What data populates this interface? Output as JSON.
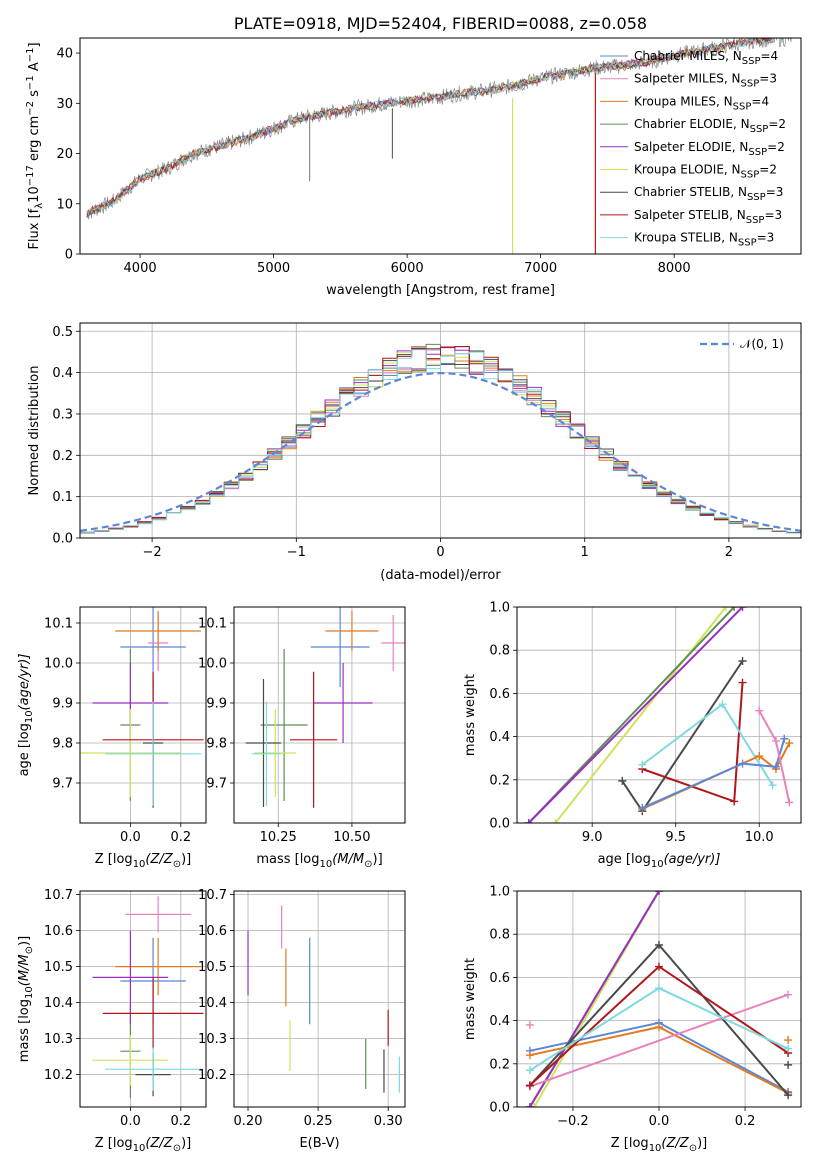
{
  "colors": {
    "Chabrier MILES": "#5b87d6",
    "Salpeter MILES": "#e882bf",
    "Kroupa MILES": "#e07b22",
    "Chabrier ELODIE": "#5e8f55",
    "Salpeter ELODIE": "#9a2fc2",
    "Kroupa ELODIE": "#cfe35a",
    "Chabrier STELIB": "#4a4a4a",
    "Salpeter STELIB": "#b01818",
    "Kroupa STELIB": "#7fd9e0"
  },
  "legend_models": [
    {
      "key": "Chabrier MILES",
      "label": "Chabrier MILES, N",
      "n": "=4"
    },
    {
      "key": "Salpeter MILES",
      "label": "Salpeter MILES, N",
      "n": "=3"
    },
    {
      "key": "Kroupa MILES",
      "label": "Kroupa MILES, N",
      "n": "=4"
    },
    {
      "key": "Chabrier ELODIE",
      "label": "Chabrier ELODIE, N",
      "n": "=2"
    },
    {
      "key": "Salpeter ELODIE",
      "label": "Salpeter ELODIE, N",
      "n": "=2"
    },
    {
      "key": "Kroupa ELODIE",
      "label": "Kroupa ELODIE, N",
      "n": "=2"
    },
    {
      "key": "Chabrier STELIB",
      "label": "Chabrier STELIB, N",
      "n": "=3"
    },
    {
      "key": "Salpeter STELIB",
      "label": "Salpeter STELIB, N",
      "n": "=3"
    },
    {
      "key": "Kroupa STELIB",
      "label": "Kroupa STELIB, N",
      "n": "=3"
    }
  ],
  "legend_sub": "SSP",
  "chart_data": [
    {
      "type": "line",
      "panel": "spectrum",
      "title": "PLATE=0918, MJD=52404, FIBERID=0088, z=0.058",
      "xlabel": "wavelength [Angstrom, rest frame]",
      "ylabel": "Flux [f",
      "ylabel_sub": "λ",
      "ylabel_rest": "10",
      "ylabel_exp": "−17",
      "ylabel_units": " erg cm",
      "ylabel_units_exp": "−2",
      "ylabel_units2": " s",
      "ylabel_units2_exp": "−1",
      "ylabel_units3": " A",
      "ylabel_units3_exp": "−1",
      "ylabel_end": "]",
      "xlim": [
        3550,
        8950
      ],
      "ylim": [
        0,
        43
      ],
      "xticks": [
        4000,
        5000,
        6000,
        7000,
        8000
      ],
      "yticks": [
        0,
        10,
        20,
        30,
        40
      ],
      "trend": [
        [
          3600,
          8
        ],
        [
          3800,
          10.5
        ],
        [
          4000,
          15
        ],
        [
          4200,
          17
        ],
        [
          4400,
          20
        ],
        [
          4600,
          21.5
        ],
        [
          4800,
          23
        ],
        [
          5000,
          25
        ],
        [
          5200,
          27
        ],
        [
          5400,
          28
        ],
        [
          5600,
          29
        ],
        [
          5800,
          29.8
        ],
        [
          6000,
          30.5
        ],
        [
          6200,
          31
        ],
        [
          6400,
          32
        ],
        [
          6600,
          32.5
        ],
        [
          6800,
          33.5
        ],
        [
          7000,
          35
        ],
        [
          7200,
          36
        ],
        [
          7400,
          37
        ],
        [
          7600,
          37.5
        ],
        [
          7800,
          38.2
        ],
        [
          8000,
          39.5
        ],
        [
          8200,
          40.5
        ],
        [
          8400,
          41.5
        ],
        [
          8600,
          42.5
        ],
        [
          8900,
          43
        ]
      ]
    },
    {
      "type": "line",
      "panel": "residuals",
      "xlabel": "(data-model)/error",
      "ylabel": "Normed distribution",
      "xlim": [
        -2.5,
        2.5
      ],
      "ylim": [
        0,
        0.52
      ],
      "xticks": [
        -2,
        -1,
        0,
        1,
        2
      ],
      "xticklabels": [
        "−2",
        "−1",
        "0",
        "1",
        "2"
      ],
      "yticks": [
        0.0,
        0.1,
        0.2,
        0.3,
        0.4,
        0.5
      ],
      "yticklabels": [
        "0.0",
        "0.1",
        "0.2",
        "0.3",
        "0.4",
        "0.5"
      ],
      "legend": "𝒩(0, 1)",
      "gaussian": {
        "mu": 0,
        "sigma": 1
      }
    },
    {
      "type": "scatter",
      "panel": "age-vs-Z",
      "xlabel": "Z [log",
      "xlabel_sub": "10",
      "xlabel_rest": "(Z/Z",
      "xlabel_sun": "⊙",
      "xlabel_end": ")]",
      "ylabel": "age  [log",
      "ylabel_sub": "10",
      "ylabel_rest": "(age/yr)]",
      "xlim": [
        -0.2,
        0.3
      ],
      "ylim": [
        9.6,
        10.14
      ],
      "xticks": [
        0.0,
        0.2
      ],
      "xticklabels": [
        "0.0",
        "0.2"
      ],
      "yticks": [
        9.7,
        9.8,
        9.9,
        10.0,
        10.1
      ],
      "yticklabels": [
        "9.7",
        "9.8",
        "9.9",
        "10.0",
        "10.1"
      ],
      "points": [
        {
          "model": "Chabrier MILES",
          "x": 0.09,
          "xerr": 0.13,
          "y": 10.04,
          "yerr": 0.1
        },
        {
          "model": "Salpeter MILES",
          "x": 0.11,
          "xerr": 0.04,
          "y": 10.05,
          "yerr": 0.07
        },
        {
          "model": "Kroupa MILES",
          "x": 0.11,
          "xerr": 0.17,
          "y": 10.08,
          "yerr": 0.05
        },
        {
          "model": "Chabrier ELODIE",
          "x": 0.0,
          "xerr": 0.04,
          "y": 9.845,
          "yerr": 0.19
        },
        {
          "model": "Salpeter ELODIE",
          "x": 0.0,
          "xerr": 0.15,
          "y": 9.9,
          "yerr": 0.1
        },
        {
          "model": "Kroupa ELODIE",
          "x": 0.0,
          "xerr": 0.2,
          "y": 9.775,
          "yerr": 0.11
        },
        {
          "model": "Chabrier STELIB",
          "x": 0.09,
          "xerr": 0.04,
          "y": 9.8,
          "yerr": 0.16
        },
        {
          "model": "Salpeter STELIB",
          "x": 0.09,
          "xerr": 0.2,
          "y": 9.808,
          "yerr": 0.17
        },
        {
          "model": "Kroupa STELIB",
          "x": 0.09,
          "xerr": 0.19,
          "y": 9.773,
          "yerr": 0.13
        }
      ]
    },
    {
      "type": "scatter",
      "panel": "age-vs-mass",
      "xlabel": "mass [log",
      "xlabel_sub": "10",
      "xlabel_rest": "(M/M",
      "xlabel_sun": "⊙",
      "xlabel_end": ")]",
      "xlim": [
        10.1,
        10.68
      ],
      "ylim": [
        9.6,
        10.14
      ],
      "xticks": [
        10.25,
        10.5
      ],
      "xticklabels": [
        "10.25",
        "10.50"
      ],
      "yticks": [
        9.7,
        9.8,
        9.9,
        10.0,
        10.1
      ],
      "yticklabels": [
        "9.7",
        "9.8",
        "9.9",
        "10.0",
        "10.1"
      ],
      "points": [
        {
          "model": "Chabrier MILES",
          "x": 10.46,
          "xerr": 0.1,
          "y": 10.04,
          "yerr": 0.1
        },
        {
          "model": "Salpeter MILES",
          "x": 10.64,
          "xerr": 0.04,
          "y": 10.05,
          "yerr": 0.07
        },
        {
          "model": "Kroupa MILES",
          "x": 10.5,
          "xerr": 0.09,
          "y": 10.08,
          "yerr": 0.05
        },
        {
          "model": "Chabrier ELODIE",
          "x": 10.27,
          "xerr": 0.08,
          "y": 9.845,
          "yerr": 0.19
        },
        {
          "model": "Salpeter ELODIE",
          "x": 10.47,
          "xerr": 0.1,
          "y": 9.9,
          "yerr": 0.1
        },
        {
          "model": "Kroupa ELODIE",
          "x": 10.24,
          "xerr": 0.07,
          "y": 9.775,
          "yerr": 0.11
        },
        {
          "model": "Chabrier STELIB",
          "x": 10.2,
          "xerr": 0.06,
          "y": 9.8,
          "yerr": 0.16
        },
        {
          "model": "Salpeter STELIB",
          "x": 10.37,
          "xerr": 0.08,
          "y": 9.808,
          "yerr": 0.17
        },
        {
          "model": "Kroupa STELIB",
          "x": 10.21,
          "xerr": 0.05,
          "y": 9.773,
          "yerr": 0.13
        }
      ]
    },
    {
      "type": "line",
      "panel": "weight-vs-age",
      "xlabel": "age  [log",
      "xlabel_sub": "10",
      "xlabel_rest": "(age/yr)]",
      "ylabel": "mass weight",
      "xlim": [
        8.55,
        10.25
      ],
      "ylim": [
        0,
        1
      ],
      "xticks": [
        9.0,
        9.5,
        10.0
      ],
      "xticklabels": [
        "9.0",
        "9.5",
        "10.0"
      ],
      "yticks": [
        0.0,
        0.2,
        0.4,
        0.6,
        0.8,
        1.0
      ],
      "yticklabels": [
        "0.0",
        "0.2",
        "0.4",
        "0.6",
        "0.8",
        "1.0"
      ],
      "series": [
        {
          "model": "Kroupa ELODIE",
          "points": [
            [
              8.78,
              0
            ],
            [
              9.8,
              1
            ]
          ]
        },
        {
          "model": "Chabrier ELODIE",
          "points": [
            [
              8.62,
              0
            ],
            [
              9.85,
              1
            ]
          ]
        },
        {
          "model": "Salpeter ELODIE",
          "points": [
            [
              8.62,
              0
            ],
            [
              9.9,
              1
            ]
          ]
        },
        {
          "model": "Chabrier STELIB",
          "points": [
            [
              9.18,
              0.195
            ],
            [
              9.3,
              0.055
            ],
            [
              9.9,
              0.75
            ]
          ]
        },
        {
          "model": "Salpeter STELIB",
          "points": [
            [
              9.3,
              0.25
            ],
            [
              9.85,
              0.1
            ],
            [
              9.9,
              0.65
            ]
          ]
        },
        {
          "model": "Kroupa STELIB",
          "points": [
            [
              9.3,
              0.27
            ],
            [
              9.78,
              0.55
            ],
            [
              10.08,
              0.175
            ]
          ]
        },
        {
          "model": "Kroupa MILES",
          "points": [
            [
              9.3,
              0.065
            ],
            [
              10.0,
              0.31
            ],
            [
              10.1,
              0.25
            ],
            [
              10.18,
              0.37
            ]
          ]
        },
        {
          "model": "Chabrier MILES",
          "points": [
            [
              9.3,
              0.07
            ],
            [
              9.9,
              0.275
            ],
            [
              10.1,
              0.26
            ],
            [
              10.15,
              0.39
            ]
          ]
        },
        {
          "model": "Salpeter MILES",
          "points": [
            [
              10.0,
              0.52
            ],
            [
              10.1,
              0.38
            ],
            [
              10.18,
              0.095
            ]
          ]
        }
      ]
    },
    {
      "type": "scatter",
      "panel": "mass-vs-Z",
      "xlabel": "Z [log",
      "xlabel_sub": "10",
      "xlabel_rest": "(Z/Z",
      "xlabel_sun": "⊙",
      "xlabel_end": ")]",
      "ylabel": "mass [log",
      "ylabel_sub": "10",
      "ylabel_rest": "(M/M",
      "ylabel_sun": "⊙",
      "ylabel_end": ")]",
      "xlim": [
        -0.2,
        0.3
      ],
      "ylim": [
        10.11,
        10.71
      ],
      "xticks": [
        0.0,
        0.2
      ],
      "xticklabels": [
        "0.0",
        "0.2"
      ],
      "yticks": [
        10.2,
        10.3,
        10.4,
        10.5,
        10.6,
        10.7
      ],
      "yticklabels": [
        "10.2",
        "10.3",
        "10.4",
        "10.5",
        "10.6",
        "10.7"
      ],
      "points": [
        {
          "model": "Chabrier MILES",
          "x": 0.09,
          "xerr": 0.13,
          "y": 10.46,
          "yerr": 0.12
        },
        {
          "model": "Salpeter MILES",
          "x": 0.11,
          "xerr": 0.13,
          "y": 10.645,
          "yerr": 0.05
        },
        {
          "model": "Kroupa MILES",
          "x": 0.11,
          "xerr": 0.17,
          "y": 10.5,
          "yerr": 0.08
        },
        {
          "model": "Chabrier ELODIE",
          "x": 0.0,
          "xerr": 0.04,
          "y": 10.265,
          "yerr": 0.13
        },
        {
          "model": "Salpeter ELODIE",
          "x": 0.0,
          "xerr": 0.15,
          "y": 10.47,
          "yerr": 0.13
        },
        {
          "model": "Kroupa ELODIE",
          "x": 0.0,
          "xerr": 0.15,
          "y": 10.24,
          "yerr": 0.07
        },
        {
          "model": "Chabrier STELIB",
          "x": 0.09,
          "xerr": 0.07,
          "y": 10.2,
          "yerr": 0.06
        },
        {
          "model": "Salpeter STELIB",
          "x": 0.09,
          "xerr": 0.2,
          "y": 10.37,
          "yerr": 0.1
        },
        {
          "model": "Kroupa STELIB",
          "x": 0.09,
          "xerr": 0.19,
          "y": 10.215,
          "yerr": 0.06
        }
      ]
    },
    {
      "type": "scatter",
      "panel": "mass-vs-EBV",
      "xlabel": "E(B-V)",
      "xlim": [
        0.19,
        0.312
      ],
      "ylim": [
        10.11,
        10.71
      ],
      "xticks": [
        0.2,
        0.25,
        0.3
      ],
      "xticklabels": [
        "0.20",
        "0.25",
        "0.30"
      ],
      "yticks": [
        10.2,
        10.3,
        10.4,
        10.5,
        10.6,
        10.7
      ],
      "yticklabels": [
        "10.2",
        "10.3",
        "10.4",
        "10.5",
        "10.6",
        "10.7"
      ],
      "points": [
        {
          "model": "Chabrier MILES",
          "x": 0.244,
          "yerr": 0.12,
          "y": 10.46
        },
        {
          "model": "Salpeter MILES",
          "x": 0.224,
          "yerr": 0.06,
          "y": 10.61
        },
        {
          "model": "Kroupa MILES",
          "x": 0.227,
          "yerr": 0.08,
          "y": 10.47
        },
        {
          "model": "Chabrier ELODIE",
          "x": 0.284,
          "yerr": 0.07,
          "y": 10.23
        },
        {
          "model": "Salpeter ELODIE",
          "x": 0.2,
          "yerr": 0.09,
          "y": 10.51
        },
        {
          "model": "Kroupa ELODIE",
          "x": 0.23,
          "yerr": 0.07,
          "y": 10.28
        },
        {
          "model": "Chabrier STELIB",
          "x": 0.297,
          "yerr": 0.06,
          "y": 10.21
        },
        {
          "model": "Salpeter STELIB",
          "x": 0.3,
          "yerr": 0.05,
          "y": 10.33
        },
        {
          "model": "Kroupa STELIB",
          "x": 0.308,
          "yerr": 0.05,
          "y": 10.2
        }
      ]
    },
    {
      "type": "line",
      "panel": "weight-vs-Z",
      "xlabel": "Z [log",
      "xlabel_sub": "10",
      "xlabel_rest": "(Z/Z",
      "xlabel_sun": "⊙",
      "xlabel_end": ")]",
      "ylabel": "mass weight",
      "xlim": [
        -0.33,
        0.33
      ],
      "ylim": [
        0,
        1
      ],
      "xticks": [
        -0.2,
        0.0,
        0.2
      ],
      "xticklabels": [
        "−0.2",
        "0.0",
        "0.2"
      ],
      "yticks": [
        0.0,
        0.2,
        0.4,
        0.6,
        0.8,
        1.0
      ],
      "yticklabels": [
        "0.0",
        "0.2",
        "0.4",
        "0.6",
        "0.8",
        "1.0"
      ],
      "series": [
        {
          "model": "Chabrier ELODIE",
          "points": [
            [
              -0.3,
              0
            ],
            [
              0.0,
              1
            ]
          ]
        },
        {
          "model": "Kroupa ELODIE",
          "points": [
            [
              -0.29,
              0
            ],
            [
              0.0,
              1
            ]
          ]
        },
        {
          "model": "Salpeter ELODIE",
          "points": [
            [
              -0.3,
              0
            ],
            [
              0.0,
              1
            ]
          ]
        },
        {
          "model": "Chabrier MILES",
          "points": [
            [
              -0.3,
              0.26
            ],
            [
              0.0,
              0.39
            ],
            [
              0.3,
              0.07
            ]
          ]
        },
        {
          "model": "Kroupa MILES",
          "points": [
            [
              -0.3,
              0.24
            ],
            [
              0.0,
              0.37
            ],
            [
              0.3,
              0.065
            ]
          ]
        },
        {
          "model": "Salpeter MILES",
          "points": [
            [
              -0.3,
              0.095
            ],
            [
              0.3,
              0.52
            ]
          ]
        },
        {
          "model": "Chabrier STELIB",
          "points": [
            [
              -0.3,
              0.1
            ],
            [
              0.0,
              0.75
            ],
            [
              0.3,
              0.055
            ]
          ]
        },
        {
          "model": "Salpeter STELIB",
          "points": [
            [
              -0.3,
              0.1
            ],
            [
              0.0,
              0.65
            ],
            [
              0.3,
              0.25
            ]
          ]
        },
        {
          "model": "Kroupa STELIB",
          "points": [
            [
              -0.3,
              0.17
            ],
            [
              0.0,
              0.55
            ],
            [
              0.3,
              0.27
            ]
          ]
        }
      ],
      "markers": [
        {
          "model": "Salpeter MILES",
          "x": -0.3,
          "y": 0.38
        },
        {
          "model": "Kroupa MILES",
          "x": 0.3,
          "y": 0.31
        },
        {
          "model": "Chabrier STELIB",
          "x": 0.3,
          "y": 0.195
        }
      ]
    }
  ]
}
